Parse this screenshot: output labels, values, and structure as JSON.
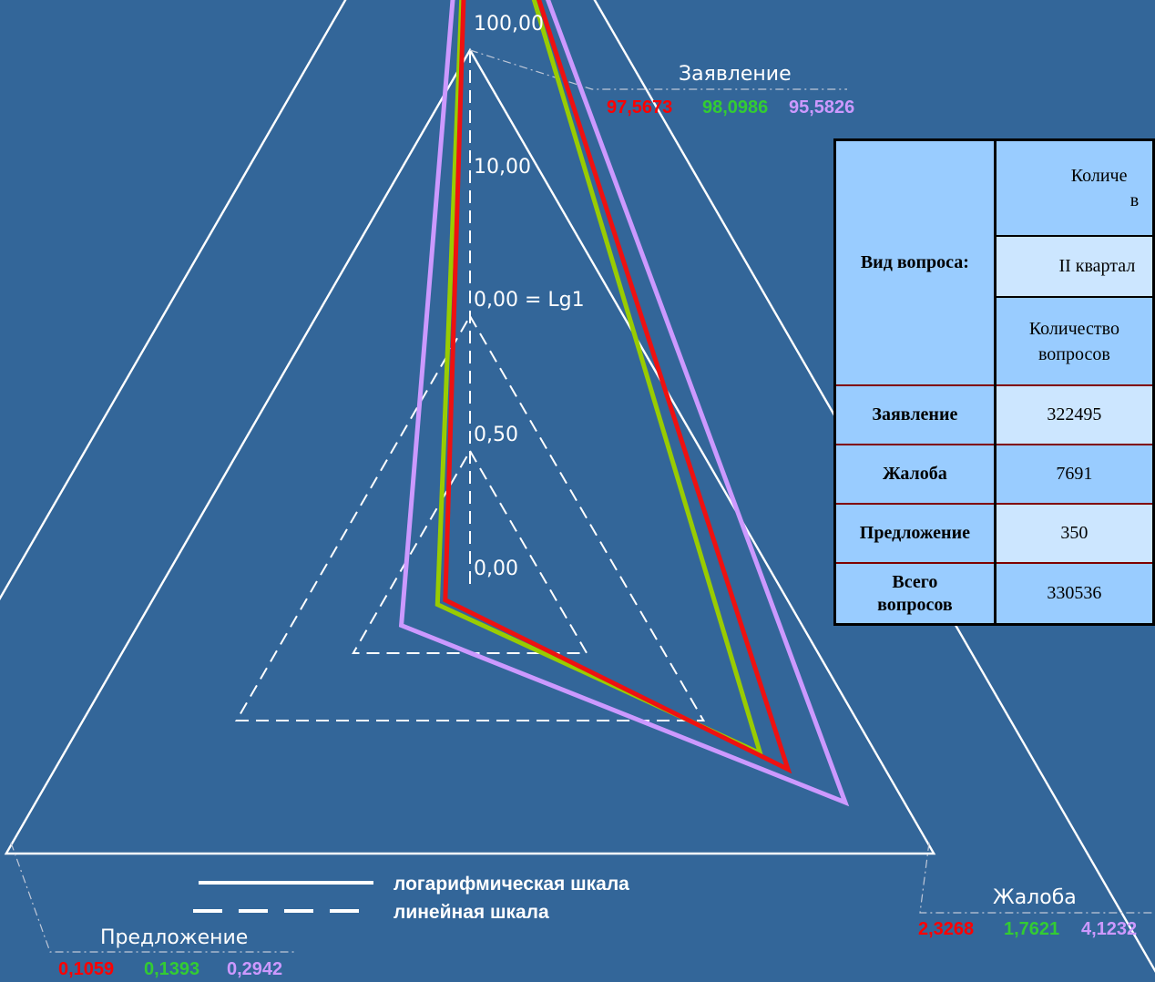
{
  "axes": [
    {
      "name": "Заявление",
      "values": [
        "97,5673",
        "98,0986",
        "95,5826"
      ]
    },
    {
      "name": "Жалоба",
      "values": [
        "2,3268",
        "1,7621",
        "4,1232"
      ]
    },
    {
      "name": "Предложение",
      "values": [
        "0,1059",
        "0,1393",
        "0,2942"
      ]
    }
  ],
  "scale_labels": {
    "top": "100,00",
    "s10": "10,00",
    "s0": "0,00 = Lg1",
    "s05": "0,50",
    "s00": "0,00"
  },
  "legend": {
    "log": "логарифмическая шкала",
    "linear": "линейная шкала"
  },
  "colors": {
    "red": "#ff0000",
    "green": "#33cc33",
    "purple": "#cc99ff",
    "line_red": "#ee1111",
    "line_green": "#99cc00",
    "line_purple": "#cc99ff"
  },
  "table": {
    "header_main": "Количе",
    "header_main_2": "в",
    "header_left": "Вид вопроса:",
    "quarter": "II квартал",
    "count_label": "Количество вопросов",
    "rows": [
      {
        "label": "Заявление",
        "value": "322495"
      },
      {
        "label": "Жалоба",
        "value": "7691"
      },
      {
        "label": "Предложение",
        "value": "350"
      },
      {
        "label": "Всего вопросов",
        "value": "330536"
      }
    ]
  },
  "chart_data": {
    "type": "radar",
    "categories": [
      "Заявление",
      "Жалоба",
      "Предложение"
    ],
    "series": [
      {
        "color": "#ff0000",
        "values": [
          97.5673,
          2.3268,
          0.1059
        ]
      },
      {
        "color": "#33cc33",
        "values": [
          98.0986,
          1.7621,
          0.1393
        ]
      },
      {
        "color": "#cc99ff",
        "values": [
          95.5826,
          4.1232,
          0.2942
        ]
      }
    ],
    "scale_ticks": [
      "0,00",
      "0,50",
      "0,00 = Lg1",
      "10,00",
      "100,00"
    ],
    "scale": "inner rings linear (0–1), outer rings logarithmic (1–100)"
  }
}
